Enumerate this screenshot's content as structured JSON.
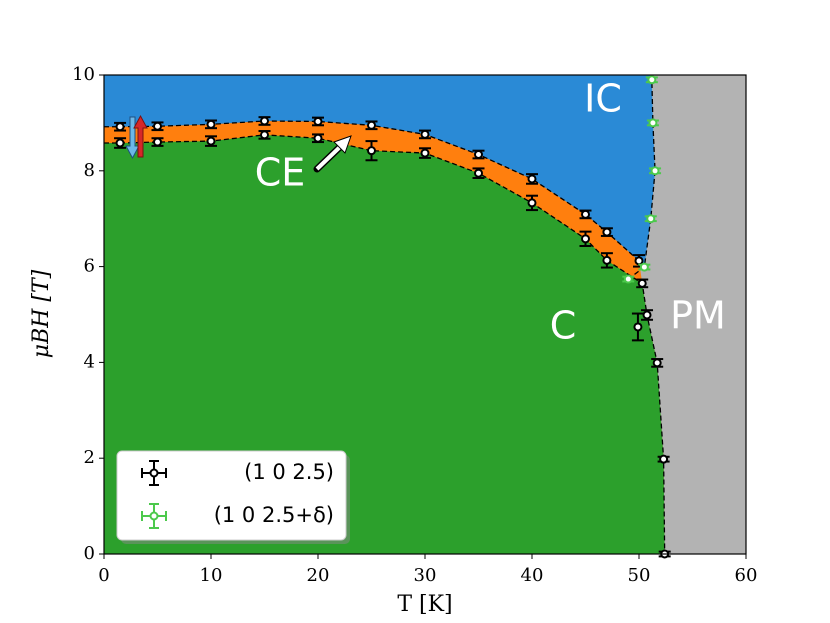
{
  "chart_data": {
    "type": "scatter",
    "xlabel": "T [K]",
    "ylabel": "μBH [T]",
    "xlim": [
      0,
      60
    ],
    "ylim": [
      0,
      10
    ],
    "xticks": [
      0,
      10,
      20,
      30,
      40,
      50,
      60
    ],
    "yticks": [
      0,
      2,
      4,
      6,
      8,
      10
    ],
    "annotations": [
      "IC",
      "CE",
      "C",
      "PM"
    ],
    "region_colors": {
      "IC": "#2a8ad6",
      "CE": "#ff7f0e",
      "C": "#2ca02c",
      "PM": "#b3b3b3"
    },
    "legend": "lower left",
    "series": [
      {
        "name": "(1 0 2.5)",
        "color": "#000000",
        "x": [
          1.5,
          5,
          10,
          15,
          20,
          25,
          30,
          35,
          40,
          45,
          47,
          50
        ],
        "values": [
          8.92,
          8.93,
          8.97,
          9.04,
          9.03,
          8.95,
          8.76,
          8.34,
          7.83,
          7.09,
          6.72,
          6.12
        ],
        "yerr": [
          0.08,
          0.08,
          0.08,
          0.08,
          0.08,
          0.08,
          0.08,
          0.08,
          0.1,
          0.08,
          0.08,
          0.12
        ]
      },
      {
        "color": "#000000",
        "x": [
          1.5,
          5,
          10,
          15,
          20,
          25,
          30,
          35,
          40,
          45,
          47,
          50.3,
          50.75,
          51.7,
          52.3,
          52.4
        ],
        "values": [
          8.58,
          8.6,
          8.62,
          8.75,
          8.68,
          8.42,
          8.37,
          7.95,
          7.33,
          6.58,
          6.13,
          5.65,
          4.99,
          3.99,
          1.98,
          0
        ],
        "yerr": [
          0.1,
          0.08,
          0.1,
          0.08,
          0.08,
          0.2,
          0.1,
          0.1,
          0.15,
          0.15,
          0.15,
          0.08,
          0.1,
          0.08,
          0.05,
          0.05
        ]
      },
      {
        "color": "#000000",
        "x": [
          49.9
        ],
        "values": [
          4.74
        ],
        "yerr": [
          0.28
        ]
      },
      {
        "name": "(1 0 2.5+δ)",
        "color": "#4cc94c",
        "x": [
          51.2,
          51.3,
          51.5,
          51.1,
          50.5,
          49.0
        ],
        "values": [
          9.9,
          9.0,
          8.0,
          7.0,
          5.99,
          5.74
        ],
        "yerr": [
          0.05,
          0.05,
          0.05,
          0.05,
          0.05,
          0.05
        ]
      }
    ]
  }
}
